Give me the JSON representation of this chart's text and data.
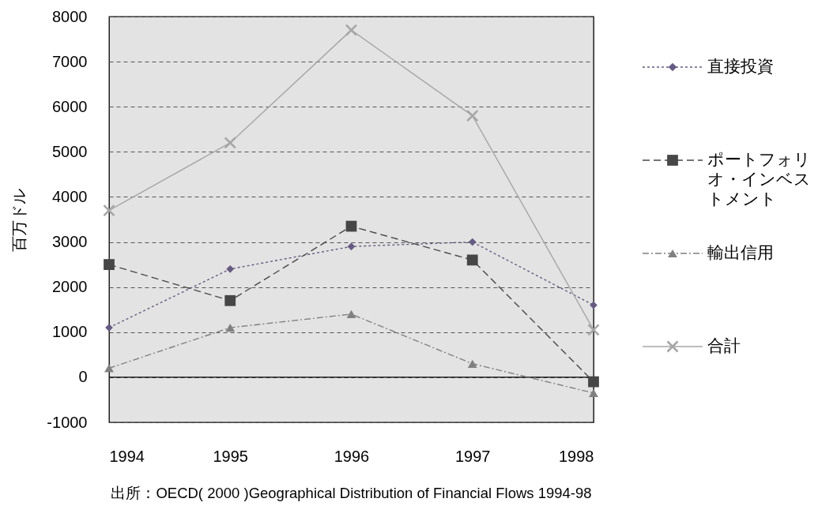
{
  "chart_data": {
    "type": "line",
    "ylabel": "百万ドル",
    "x": [
      1994,
      1995,
      1996,
      1997,
      1998
    ],
    "xlim": [
      1994,
      1998
    ],
    "xticks": [
      1994,
      1995,
      1996,
      1997,
      1998
    ],
    "ylim": [
      -1000,
      8000
    ],
    "yticks": [
      -1000,
      0,
      1000,
      2000,
      3000,
      4000,
      5000,
      6000,
      7000,
      8000
    ],
    "grid": "y",
    "legend": "right",
    "series": [
      {
        "name": "直接投資",
        "color": "#665b82",
        "marker": "diamond",
        "line_style": "dotted",
        "values": [
          1100,
          2400,
          2900,
          3000,
          1600
        ]
      },
      {
        "name": "ポートフォリオ・インベストメント",
        "color": "#474747",
        "marker": "square",
        "line_style": "dashed",
        "values": [
          2500,
          1700,
          3350,
          2600,
          -100
        ]
      },
      {
        "name": "輸出信用",
        "color": "#808080",
        "marker": "triangle",
        "line_style": "dashdot",
        "values": [
          200,
          1100,
          1400,
          300,
          -350
        ]
      },
      {
        "name": "合計",
        "color": "#a6a6a6",
        "marker": "cross",
        "line_style": "solid",
        "values": [
          3700,
          5200,
          7700,
          5800,
          1050
        ]
      }
    ],
    "ref_lines": [
      {
        "axis": "y",
        "value": 0,
        "color": "#000000",
        "line_style": "solid"
      }
    ],
    "annotations": [
      "出所：OECD( 2000 )Geographical Distribution of Financial Flows 1994-98"
    ]
  }
}
